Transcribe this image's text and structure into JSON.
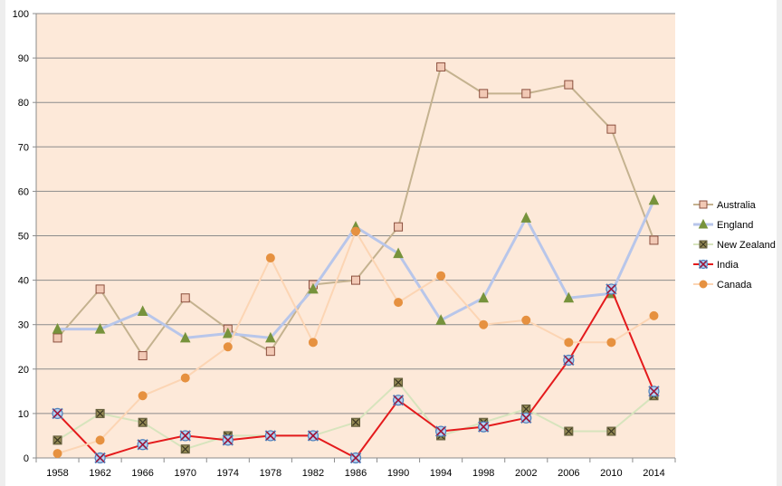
{
  "chart_data": {
    "type": "line",
    "title": "",
    "xlabel": "",
    "ylabel": "",
    "ylim": [
      0,
      100
    ],
    "ytick_step": 10,
    "grid": "horizontal",
    "legend_position": "right",
    "plot_background": "#fde9d9",
    "categories": [
      "1958",
      "1962",
      "1966",
      "1970",
      "1974",
      "1978",
      "1982",
      "1986",
      "1990",
      "1994",
      "1998",
      "2002",
      "2006",
      "2010",
      "2014"
    ],
    "series": [
      {
        "name": "Australia",
        "color": "#c4b28f",
        "marker": "square",
        "marker_fill": "#f2c9b5",
        "marker_stroke": "#8b4f3e",
        "line_width": 2,
        "values": [
          27,
          38,
          23,
          36,
          29,
          24,
          39,
          40,
          52,
          88,
          82,
          82,
          84,
          74,
          49
        ]
      },
      {
        "name": "England",
        "color": "#b8c6ea",
        "marker": "triangle",
        "marker_fill": "#77933c",
        "marker_stroke": "#77933c",
        "line_width": 3,
        "values": [
          29,
          29,
          33,
          27,
          28,
          27,
          38,
          52,
          46,
          31,
          36,
          54,
          36,
          37,
          58
        ]
      },
      {
        "name": "New Zealand",
        "color": "#d7e4bd",
        "marker": "x-square",
        "marker_fill": "#948a54",
        "marker_stroke": "#5f5a3a",
        "line_width": 2,
        "values": [
          4,
          10,
          8,
          2,
          5,
          5,
          5,
          8,
          17,
          5,
          8,
          11,
          6,
          6,
          14
        ]
      },
      {
        "name": "India",
        "color": "#e41a1c",
        "marker": "x-circle",
        "marker_fill": "#bcd2ee",
        "marker_stroke": "#4f81bd",
        "line_width": 2,
        "values": [
          10,
          0,
          3,
          5,
          4,
          5,
          5,
          0,
          13,
          6,
          7,
          9,
          22,
          38,
          15
        ]
      },
      {
        "name": "Canada",
        "color": "#fcd5b4",
        "marker": "circle",
        "marker_fill": "#e69140",
        "marker_stroke": "#e69140",
        "line_width": 2,
        "values": [
          1,
          4,
          14,
          18,
          25,
          45,
          26,
          51,
          35,
          41,
          30,
          31,
          26,
          26,
          32
        ]
      }
    ]
  }
}
